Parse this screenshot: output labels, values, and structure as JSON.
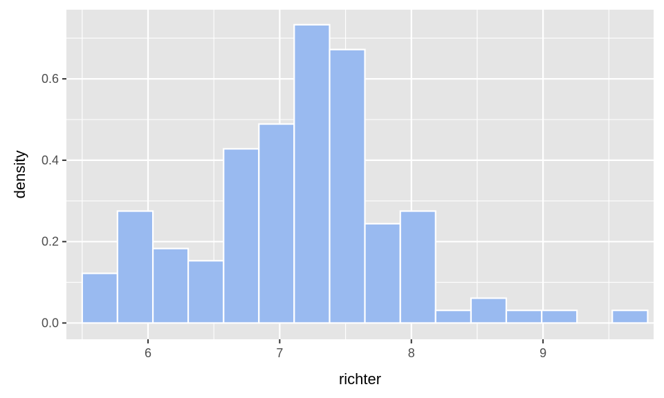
{
  "chart_data": {
    "type": "bar",
    "subtype": "histogram",
    "title": "",
    "xlabel": "richter",
    "ylabel": "density",
    "xlim": [
      5.38,
      9.84
    ],
    "ylim": [
      -0.04,
      0.77
    ],
    "x_ticks": [
      6,
      7,
      8,
      9
    ],
    "x_tick_labels": [
      "6",
      "7",
      "8",
      "9"
    ],
    "y_ticks": [
      0.0,
      0.2,
      0.4,
      0.6
    ],
    "y_tick_labels": [
      "0.0",
      "0.2",
      "0.4",
      "0.6"
    ],
    "grid": true,
    "legend": "none",
    "bin_width": 0.2684,
    "bins": [
      {
        "x0": 5.5,
        "x1": 5.768,
        "density": 0.122
      },
      {
        "x0": 5.768,
        "x1": 6.037,
        "density": 0.275
      },
      {
        "x0": 6.037,
        "x1": 6.305,
        "density": 0.183
      },
      {
        "x0": 6.305,
        "x1": 6.574,
        "density": 0.153
      },
      {
        "x0": 6.574,
        "x1": 6.842,
        "density": 0.428
      },
      {
        "x0": 6.842,
        "x1": 7.11,
        "density": 0.489
      },
      {
        "x0": 7.11,
        "x1": 7.379,
        "density": 0.733
      },
      {
        "x0": 7.379,
        "x1": 7.647,
        "density": 0.672
      },
      {
        "x0": 7.647,
        "x1": 7.916,
        "density": 0.244
      },
      {
        "x0": 7.916,
        "x1": 8.184,
        "density": 0.275
      },
      {
        "x0": 8.184,
        "x1": 8.453,
        "density": 0.031
      },
      {
        "x0": 8.453,
        "x1": 8.721,
        "density": 0.061
      },
      {
        "x0": 8.721,
        "x1": 8.99,
        "density": 0.031
      },
      {
        "x0": 8.99,
        "x1": 9.258,
        "density": 0.031
      },
      {
        "x0": 9.258,
        "x1": 9.526,
        "density": 0.0
      },
      {
        "x0": 9.526,
        "x1": 9.795,
        "density": 0.031
      }
    ],
    "colors": {
      "panel_background": "#E5E5E5",
      "grid": "#FFFFFF",
      "bar_fill": "#99BAF0",
      "bar_outline": "#FFFFFF",
      "tick_label": "#4D4D4D",
      "tick_mark": "#333333",
      "axis_title": "#000000"
    }
  }
}
